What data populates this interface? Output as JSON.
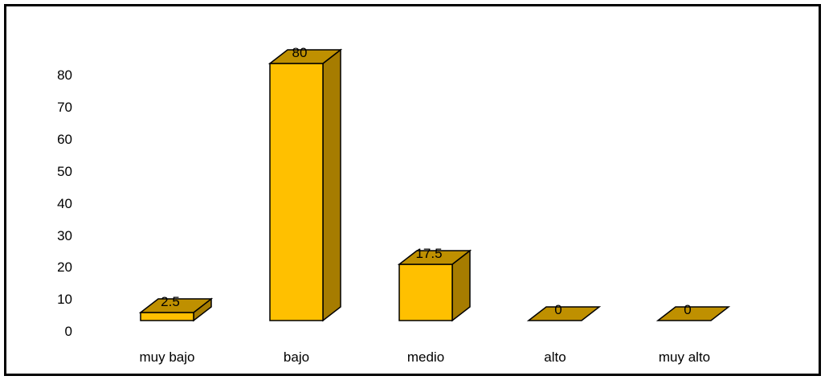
{
  "chart_data": {
    "type": "bar",
    "style": "3d-column",
    "categories": [
      "muy bajo",
      "bajo",
      "medio",
      "alto",
      "muy alto"
    ],
    "values": [
      2.5,
      80,
      17.5,
      0,
      0
    ],
    "data_labels": [
      "2.5",
      "80",
      "17.5",
      "0",
      "0"
    ],
    "y_ticks": [
      "0",
      "10",
      "20",
      "30",
      "40",
      "50",
      "60",
      "70",
      "80"
    ],
    "ylim": [
      0,
      80
    ],
    "grid": false,
    "legend": false,
    "title": "",
    "xlabel": "",
    "ylabel": "",
    "colors": {
      "front": "#FFC000",
      "top": "#BF9000",
      "side": "#A67C00",
      "outline": "#000000"
    }
  }
}
